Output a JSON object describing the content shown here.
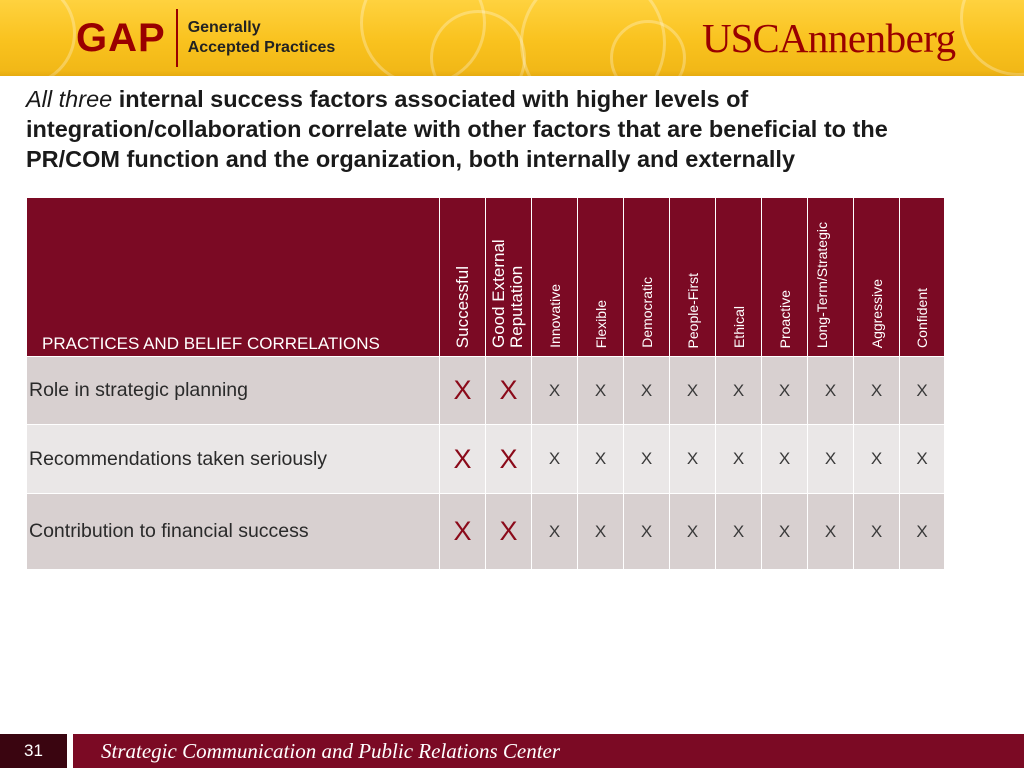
{
  "header": {
    "gap_logo": {
      "word": "GAP",
      "line1": "Generally",
      "line2": "Accepted Practices"
    },
    "usc_logo": {
      "usc": "USC",
      "annenberg": "Annenberg"
    }
  },
  "title": {
    "italic_lead": "All three",
    "text": " internal success factors associated with higher levels of integration/collaboration correlate with other factors that are beneficial to the PR/COM function and the organization, both internally and externally"
  },
  "table": {
    "corner_label": "PRACTICES AND BELIEF CORRELATIONS",
    "columns": [
      "Successful",
      "Good External Reputation",
      "Innovative",
      "Flexible",
      "Democratic",
      "People-First",
      "Ethical",
      "Proactive",
      "Long-Term/Strategic",
      "Aggressive",
      "Confident"
    ],
    "rows": [
      {
        "label": "Role in strategic planning",
        "cells": [
          "X",
          "X",
          "X",
          "X",
          "X",
          "X",
          "X",
          "X",
          "X",
          "X",
          "X"
        ]
      },
      {
        "label": "Recommendations taken seriously",
        "cells": [
          "X",
          "X",
          "X",
          "X",
          "X",
          "X",
          "X",
          "X",
          "X",
          "X",
          "X"
        ]
      },
      {
        "label": "Contribution to financial success",
        "cells": [
          "X",
          "X",
          "X",
          "X",
          "X",
          "X",
          "X",
          "X",
          "X",
          "X",
          "X"
        ]
      }
    ]
  },
  "footer": {
    "page_number": "31",
    "text": "Strategic Communication and Public Relations Center"
  },
  "colors": {
    "maroon": "#7b0a24",
    "gold": "#f9c21e",
    "usc_red": "#990000"
  }
}
